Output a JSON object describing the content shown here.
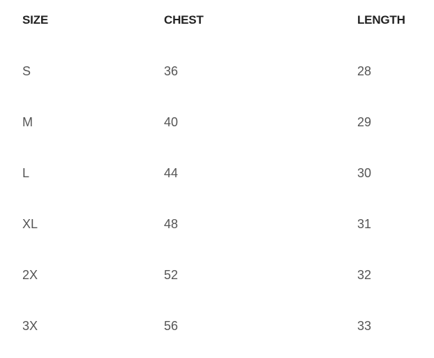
{
  "table": {
    "headers": [
      "SIZE",
      "CHEST",
      "LENGTH"
    ],
    "rows": [
      [
        "S",
        "36",
        "28"
      ],
      [
        "M",
        "40",
        "29"
      ],
      [
        "L",
        "44",
        "30"
      ],
      [
        "XL",
        "48",
        "31"
      ],
      [
        "2X",
        "52",
        "32"
      ],
      [
        "3X",
        "56",
        "33"
      ]
    ]
  }
}
